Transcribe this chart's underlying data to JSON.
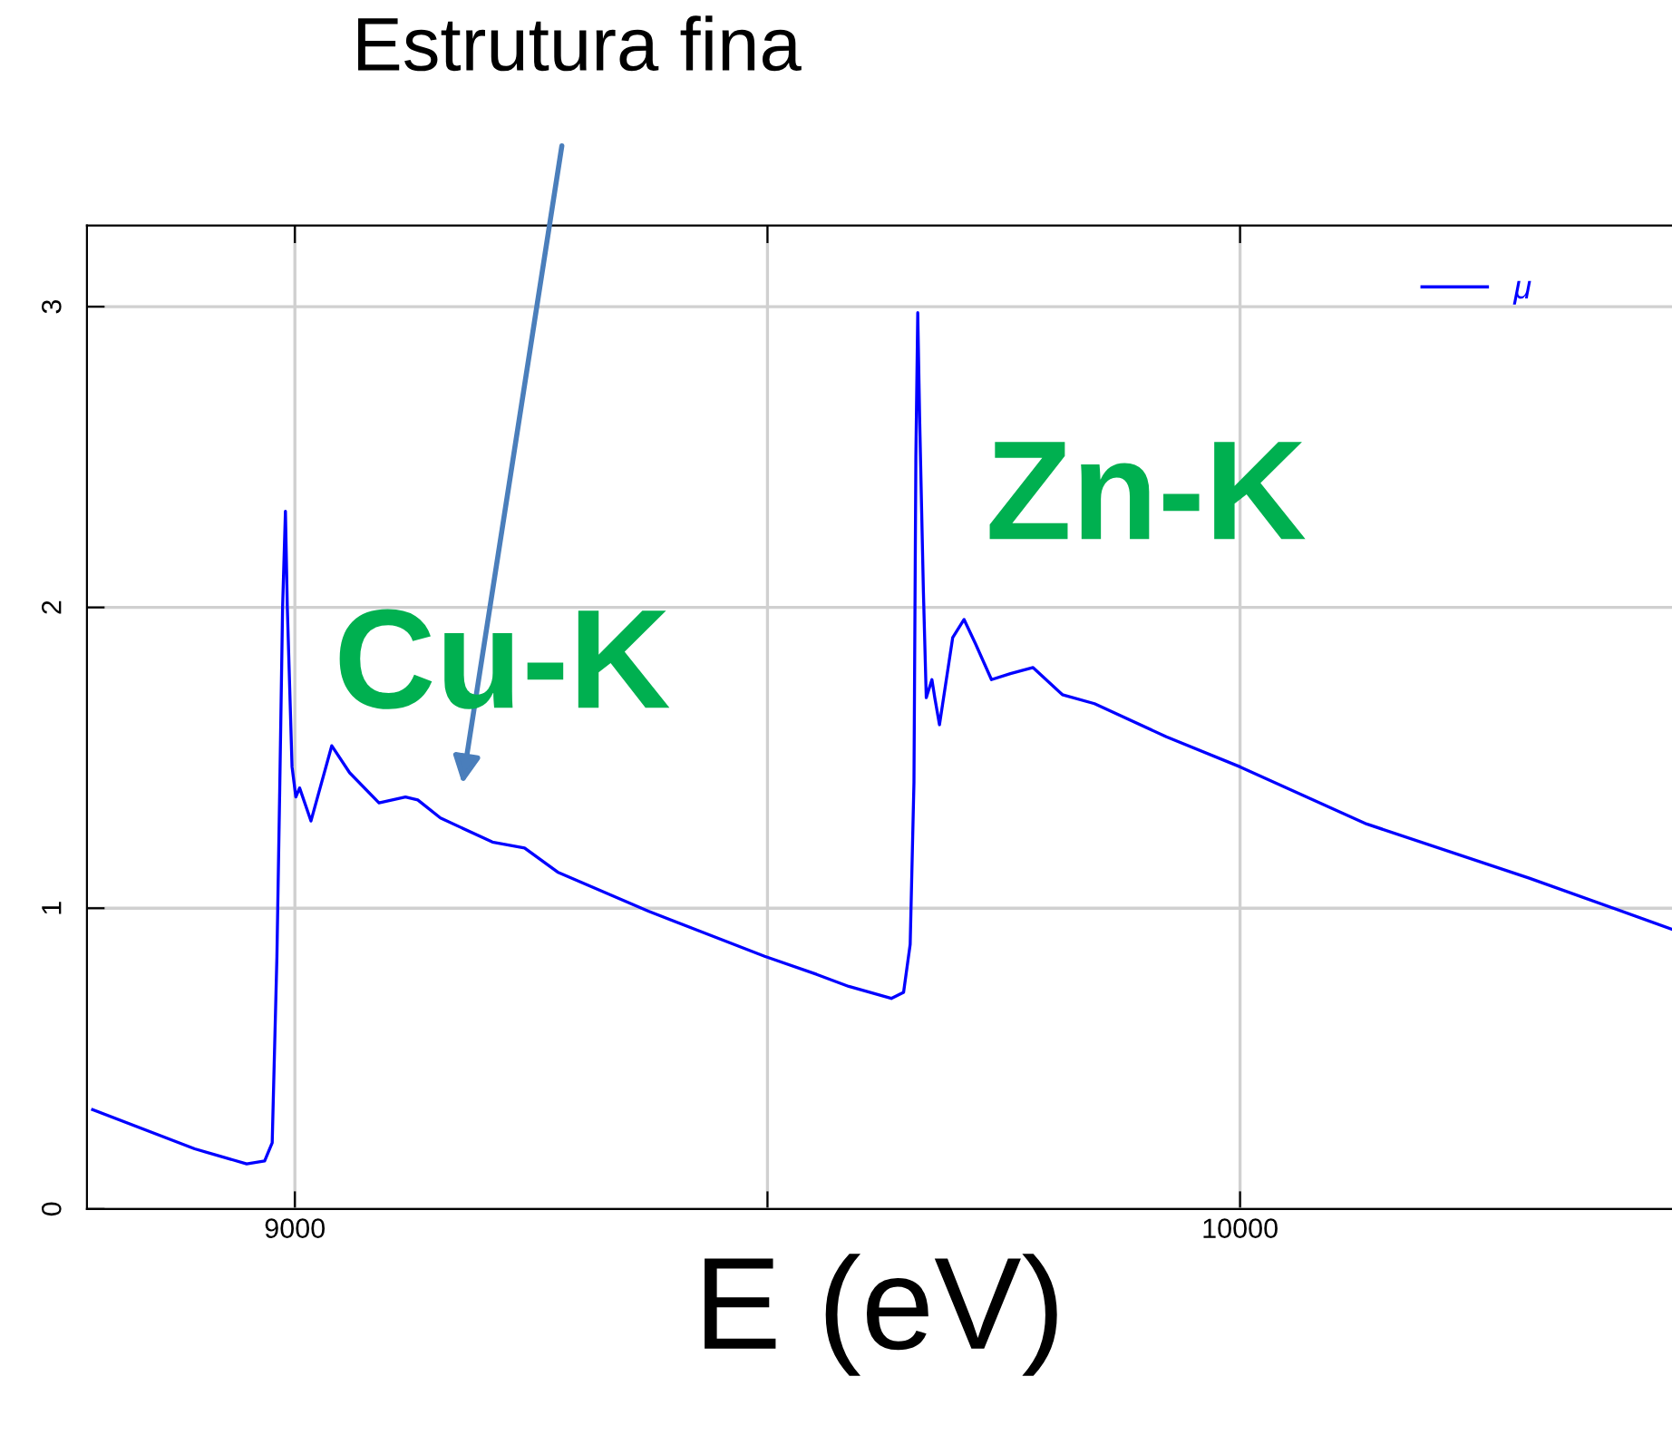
{
  "chart_data": {
    "type": "line",
    "xlabel": "E (eV)",
    "series": [
      {
        "name": "μ",
        "color": "#0000ff",
        "x": [
          8786,
          8894,
          8949,
          8968,
          8976,
          8981,
          8984,
          8987,
          8990,
          8992,
          8997,
          9001,
          9005,
          9017,
          9039,
          9058,
          9089,
          9117,
          9130,
          9154,
          9209,
          9243,
          9278,
          9374,
          9497,
          9552,
          9586,
          9631,
          9644,
          9651,
          9655,
          9657,
          9659,
          9661,
          9665,
          9668,
          9674,
          9677,
          9682,
          9696,
          9708,
          9720,
          9737,
          9757,
          9781,
          9812,
          9846,
          9922,
          10000,
          10134,
          10306,
          10457
        ],
        "values": [
          0.33,
          0.2,
          0.15,
          0.16,
          0.22,
          0.84,
          1.4,
          2.0,
          2.32,
          2.0,
          1.47,
          1.37,
          1.4,
          1.29,
          1.54,
          1.45,
          1.35,
          1.37,
          1.36,
          1.3,
          1.22,
          1.2,
          1.12,
          0.99,
          0.84,
          0.78,
          0.74,
          0.7,
          0.72,
          0.88,
          1.42,
          2.5,
          2.98,
          2.63,
          2.05,
          1.7,
          1.76,
          1.7,
          1.61,
          1.9,
          1.96,
          1.88,
          1.76,
          1.78,
          1.8,
          1.71,
          1.68,
          1.57,
          1.47,
          1.28,
          1.1,
          0.93
        ]
      }
    ],
    "xlim": [
      8780,
      10457
    ],
    "ylim": [
      0,
      3.27
    ],
    "xticks": [
      9000,
      {
        "value": 9500,
        "label": null
      },
      10000
    ],
    "yticks": [
      0,
      1,
      2,
      3
    ],
    "grid": true,
    "legend": "top right",
    "marker": "none",
    "line_style": "solid",
    "annotations": [
      "Estrutura fina",
      "Cu-K",
      "Zn-K"
    ]
  }
}
